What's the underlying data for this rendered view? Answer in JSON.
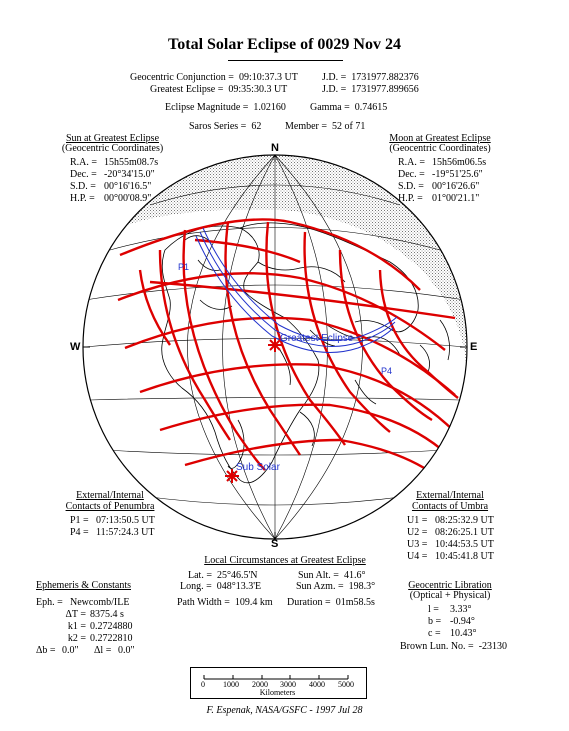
{
  "title": "Total Solar Eclipse of 0029 Nov 24",
  "header": {
    "conj_label": "Geocentric Conjunction =",
    "conj_time": "09:10:37.3 UT",
    "conj_jd_label": "J.D. =",
    "conj_jd": "1731977.882376",
    "ge_label": "Greatest Eclipse =",
    "ge_time": "09:35:30.3 UT",
    "ge_jd_label": "J.D. =",
    "ge_jd": "1731977.899656",
    "mag_label": "Eclipse Magnitude =",
    "mag": "1.02160",
    "gamma_label": "Gamma =",
    "gamma": "0.74615",
    "saros_label": "Saros Series =",
    "saros": "62",
    "member_label": "Member =",
    "member": "52 of 71"
  },
  "sun": {
    "heading": "Sun at Greatest Eclipse",
    "sub": "(Geocentric Coordinates)",
    "ra_l": "R.A. =",
    "ra": "15h55m08.7s",
    "dec_l": "Dec. =",
    "dec": "-20°34'15.0\"",
    "sd_l": "S.D. =",
    "sd": "00°16'16.5\"",
    "hp_l": "H.P. =",
    "hp": "00°00'08.9\""
  },
  "moon": {
    "heading": "Moon at Greatest Eclipse",
    "sub": "(Geocentric Coordinates)",
    "ra_l": "R.A. =",
    "ra": "15h56m06.5s",
    "dec_l": "Dec. =",
    "dec": "-19°51'25.6\"",
    "sd_l": "S.D. =",
    "sd": "00°16'26.6\"",
    "hp_l": "H.P. =",
    "hp": "01°00'21.1\""
  },
  "compass": {
    "n": "N",
    "s": "S",
    "w": "W",
    "e": "E"
  },
  "map_labels": {
    "greatest": "Greatest Eclipse",
    "subsolar": "Sub Solar",
    "p1": "P1",
    "p4": "P4"
  },
  "penumbra": {
    "h1": "External/Internal",
    "h2": "Contacts of Penumbra",
    "p1_l": "P1 =",
    "p1": "07:13:50.5 UT",
    "p4_l": "P4 =",
    "p4": "11:57:24.3 UT"
  },
  "umbra": {
    "h1": "External/Internal",
    "h2": "Contacts of Umbra",
    "u1_l": "U1 =",
    "u1": "08:25:32.9 UT",
    "u2_l": "U2 =",
    "u2": "08:26:25.1 UT",
    "u3_l": "U3 =",
    "u3": "10:44:53.5 UT",
    "u4_l": "U4 =",
    "u4": "10:45:41.8 UT"
  },
  "local": {
    "heading": "Local Circumstances at Greatest Eclipse",
    "lat_l": "Lat. =",
    "lat": "25°46.5'N",
    "long_l": "Long. =",
    "long": "048°13.3'E",
    "alt_l": "Sun Alt. =",
    "alt": "41.6°",
    "azm_l": "Sun Azm. =",
    "azm": "198.3°",
    "pw_l": "Path Width =",
    "pw": "109.4 km",
    "dur_l": "Duration =",
    "dur": "01m58.5s"
  },
  "ephem": {
    "heading": "Ephemeris & Constants",
    "eph_l": "Eph. =",
    "eph": "Newcomb/ILE",
    "dt_l": "ΔT =",
    "dt": "8375.4 s",
    "k1_l": "k1 =",
    "k1": "0.2724880",
    "k2_l": "k2 =",
    "k2": "0.2722810",
    "db_l": "Δb =",
    "db": "0.0\"",
    "dl_l": "Δl =",
    "dl": "0.0\""
  },
  "libration": {
    "h1": "Geocentric Libration",
    "h2": "(Optical + Physical)",
    "l_l": "l =",
    "l": "3.33°",
    "b_l": "b =",
    "b": "-0.94°",
    "c_l": "c =",
    "c": "10.43°",
    "brown_l": "Brown Lun. No. =",
    "brown": "-23130"
  },
  "scale": {
    "ticks": [
      "0",
      "1000",
      "2000",
      "3000",
      "4000",
      "5000"
    ],
    "unit": "Kilometers"
  },
  "credit": "F. Espenak, NASA/GSFC - 1997 Jul 28"
}
